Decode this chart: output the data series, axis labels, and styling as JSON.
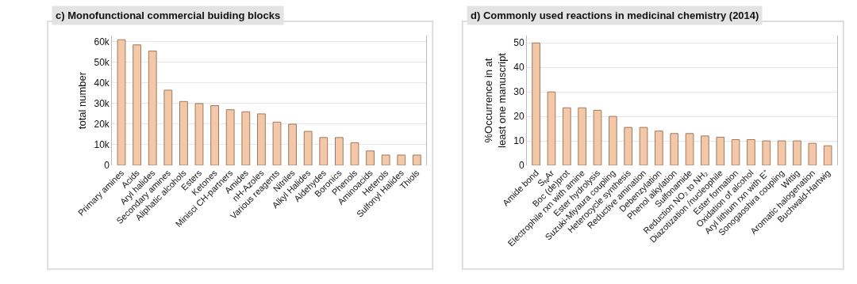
{
  "chart_data": [
    {
      "type": "bar",
      "title": "c) Monofunctional commercial buiding blocks",
      "ylabel": "total number",
      "categories": [
        "Primary amines",
        "Acids",
        "Aryl halides",
        "Secondary amines",
        "Aliphatic alcohols",
        "Esters",
        "Ketones",
        "Minisci CH-partners",
        "Amides",
        "nH-Azoles",
        "Various reagents",
        "Nitriles",
        "Alkyl Halides",
        "Aldehydes",
        "Boronics",
        "Phenols",
        "Aminoacids",
        "Heterols",
        "Sulfonyl Halides",
        "Thiols"
      ],
      "values": [
        61000,
        58500,
        55500,
        36500,
        31000,
        30000,
        29000,
        27000,
        26000,
        25000,
        21000,
        20000,
        16500,
        13500,
        13500,
        11000,
        7000,
        5000,
        5000,
        5000
      ],
      "color": "#f2c8a8",
      "ylim": [
        0,
        63000
      ],
      "yticks": [
        0,
        {
          "value": 10000,
          "label": "10k"
        },
        {
          "value": 20000,
          "label": "20k"
        },
        {
          "value": 30000,
          "label": "30k"
        },
        {
          "value": 40000,
          "label": "40k"
        },
        {
          "value": 50000,
          "label": "50k"
        },
        {
          "value": 60000,
          "label": "60k"
        }
      ],
      "grid": "y"
    },
    {
      "type": "bar",
      "title": "d) Commonly used reactions in medicinal chemistry (2014)",
      "ylabel": "%Occurrence in at least one manuscript",
      "categories": [
        "Amide bond",
        "S$_{N}$Ar",
        "Boc (de)prot",
        "Electrophile rxn with amine",
        "Ester hydrolysis",
        "Suzuki-Miyaura coupling",
        "Heterocycle synthesis",
        "Reductive amination",
        "Debenzylation",
        "Phenol alkylation",
        "Sulfonamide",
        "Reduction NO₂ to NH₂",
        "Diazotization /nucleophile",
        "Ester formation",
        "Oxidation of alcohol",
        "Aryl lithium rxn with E⁺",
        "Sonogaoshira coupling",
        "Wittig",
        "Aromatic halogenation",
        "Buchwald-Hartwig"
      ],
      "values": [
        50,
        30,
        23.5,
        23.5,
        22.5,
        20,
        15.5,
        15.5,
        14,
        13,
        13,
        12,
        11.5,
        10.5,
        10.5,
        10,
        10,
        10,
        9,
        8
      ],
      "color": "#f2c8a8",
      "ylim": [
        0,
        53
      ],
      "yticks": [
        0,
        10,
        20,
        30,
        40,
        50
      ],
      "grid": "y"
    }
  ]
}
